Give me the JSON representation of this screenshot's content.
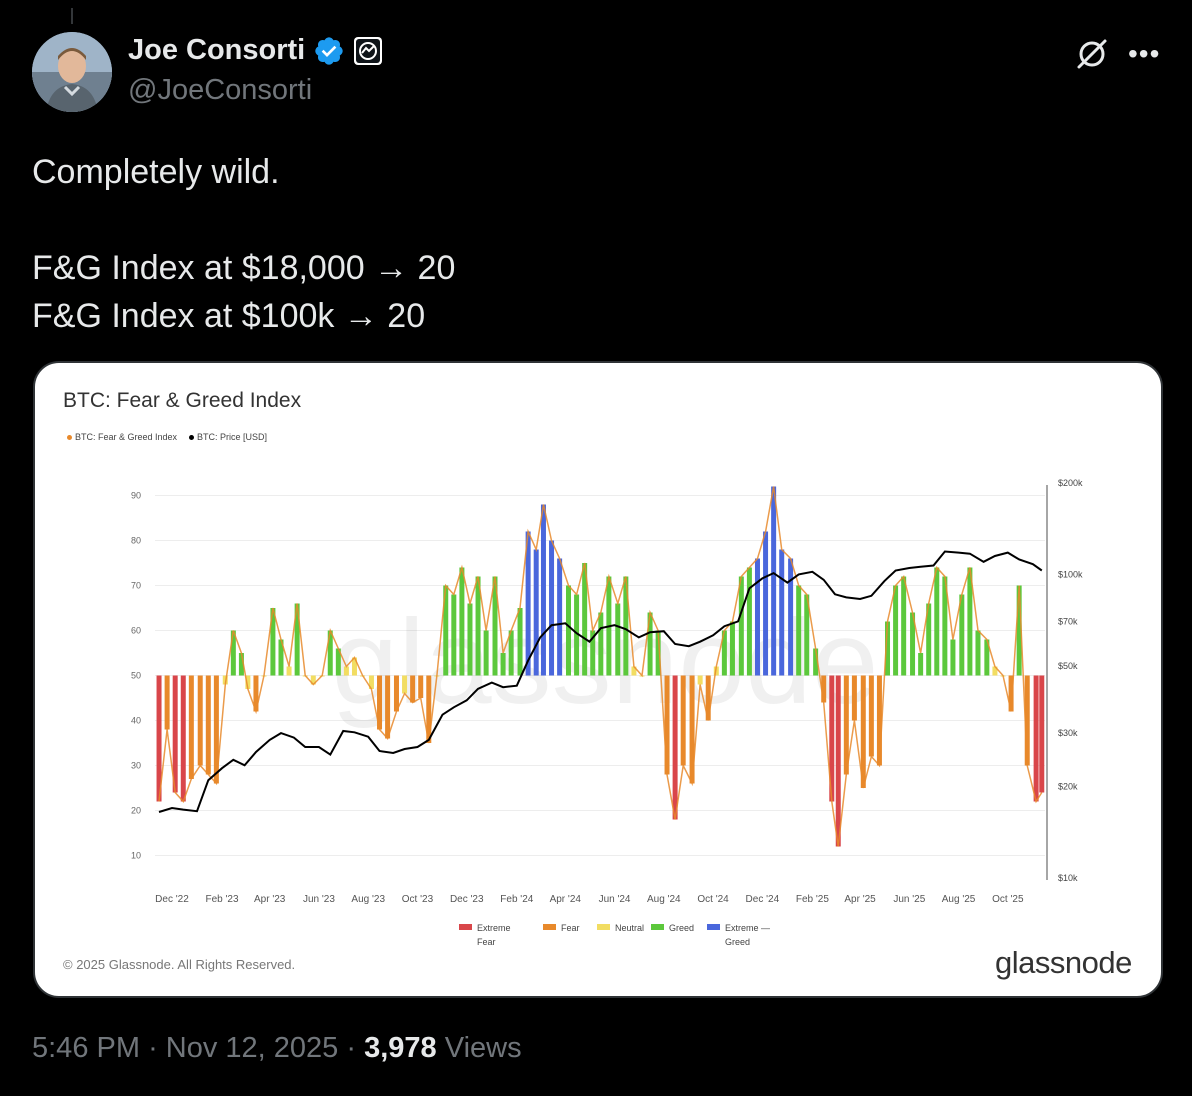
{
  "author": {
    "name": "Joe Consorti",
    "handle": "@JoeConsorti"
  },
  "tweet": {
    "lines": [
      "Completely wild.",
      "",
      "F&G Index at $18,000 → 20",
      "F&G Index at $100k → 20"
    ]
  },
  "card": {
    "copyright": "© 2025 Glassnode. All Rights Reserved.",
    "brand": "glassnode",
    "watermark": "glassnode"
  },
  "meta": {
    "time": "5:46 PM",
    "date": "Nov 12, 2025",
    "views_count": "3,978",
    "views_label": "Views",
    "separator": "·"
  },
  "colors": {
    "extreme_fear": "#d9464a",
    "fear": "#e8892b",
    "neutral": "#f2dd62",
    "greed": "#5cc83c",
    "extreme_greed": "#4a67dc",
    "price": "#000000",
    "verified": "#1d9bf0"
  },
  "chart_data": {
    "type": "line",
    "title": "BTC: Fear & Greed Index",
    "legend_series": [
      "BTC: Fear & Greed Index",
      "BTC: Price [USD]"
    ],
    "x_ticks": [
      "Dec '22",
      "Feb '23",
      "Apr '23",
      "Jun '23",
      "Aug '23",
      "Oct '23",
      "Dec '23",
      "Feb '24",
      "Apr '24",
      "Jun '24",
      "Aug '24",
      "Oct '24",
      "Dec '24",
      "Feb '25",
      "Apr '25",
      "Jun '25",
      "Aug '25",
      "Oct '25"
    ],
    "y_left_ticks": [
      10,
      20,
      30,
      40,
      50,
      60,
      70,
      80,
      90
    ],
    "y_left_range": [
      5,
      95
    ],
    "y_right_ticks": [
      "$10k",
      "$20k",
      "$30k",
      "$50k",
      "$70k",
      "$100k",
      "$200k"
    ],
    "y_right_values": [
      10000,
      20000,
      30000,
      50000,
      70000,
      100000,
      200000
    ],
    "y_right_scale": "log",
    "zone_legend": [
      "Extreme Fear",
      "Fear",
      "Neutral",
      "Greed",
      "Extreme — Greed"
    ],
    "series": [
      {
        "name": "BTC: Fear & Greed Index",
        "dates": [
          "2022-11-15",
          "2022-11-25",
          "2022-12-05",
          "2022-12-15",
          "2022-12-25",
          "2023-01-05",
          "2023-01-15",
          "2023-01-25",
          "2023-02-05",
          "2023-02-15",
          "2023-02-25",
          "2023-03-05",
          "2023-03-15",
          "2023-03-25",
          "2023-04-05",
          "2023-04-15",
          "2023-04-25",
          "2023-05-05",
          "2023-05-15",
          "2023-05-25",
          "2023-06-05",
          "2023-06-15",
          "2023-06-25",
          "2023-07-05",
          "2023-07-15",
          "2023-07-25",
          "2023-08-05",
          "2023-08-15",
          "2023-08-25",
          "2023-09-05",
          "2023-09-15",
          "2023-09-25",
          "2023-10-05",
          "2023-10-15",
          "2023-10-25",
          "2023-11-05",
          "2023-11-15",
          "2023-11-25",
          "2023-12-05",
          "2023-12-15",
          "2023-12-25",
          "2024-01-05",
          "2024-01-15",
          "2024-01-25",
          "2024-02-05",
          "2024-02-15",
          "2024-02-25",
          "2024-03-05",
          "2024-03-15",
          "2024-03-25",
          "2024-04-05",
          "2024-04-15",
          "2024-04-25",
          "2024-05-05",
          "2024-05-15",
          "2024-05-25",
          "2024-06-05",
          "2024-06-15",
          "2024-06-25",
          "2024-07-05",
          "2024-07-15",
          "2024-07-25",
          "2024-08-05",
          "2024-08-15",
          "2024-08-25",
          "2024-09-05",
          "2024-09-15",
          "2024-09-25",
          "2024-10-05",
          "2024-10-15",
          "2024-10-25",
          "2024-11-05",
          "2024-11-15",
          "2024-11-25",
          "2024-12-05",
          "2024-12-15",
          "2024-12-25",
          "2025-01-05",
          "2025-01-15",
          "2025-01-25",
          "2025-02-05",
          "2025-02-15",
          "2025-02-25",
          "2025-03-05",
          "2025-03-15",
          "2025-03-25",
          "2025-04-05",
          "2025-04-15",
          "2025-04-25",
          "2025-05-05",
          "2025-05-15",
          "2025-05-25",
          "2025-06-05",
          "2025-06-15",
          "2025-06-25",
          "2025-07-05",
          "2025-07-15",
          "2025-07-25",
          "2025-08-05",
          "2025-08-15",
          "2025-08-25",
          "2025-09-05",
          "2025-09-15",
          "2025-09-25",
          "2025-10-05",
          "2025-10-15",
          "2025-10-25",
          "2025-11-05",
          "2025-11-12"
        ],
        "values": [
          22,
          38,
          24,
          22,
          27,
          30,
          28,
          26,
          48,
          60,
          55,
          47,
          42,
          50,
          65,
          58,
          52,
          66,
          50,
          48,
          50,
          60,
          56,
          52,
          54,
          50,
          47,
          38,
          36,
          42,
          46,
          44,
          45,
          35,
          50,
          70,
          68,
          74,
          66,
          72,
          60,
          72,
          55,
          60,
          65,
          82,
          78,
          88,
          80,
          76,
          70,
          68,
          75,
          60,
          64,
          72,
          66,
          72,
          52,
          50,
          64,
          60,
          28,
          18,
          30,
          26,
          48,
          40,
          52,
          60,
          62,
          72,
          74,
          76,
          82,
          92,
          78,
          76,
          70,
          68,
          56,
          44,
          22,
          12,
          28,
          40,
          25,
          32,
          30,
          62,
          70,
          72,
          64,
          55,
          66,
          74,
          72,
          58,
          68,
          74,
          60,
          58,
          52,
          50,
          42,
          70,
          30,
          22,
          24
        ]
      },
      {
        "name": "BTC: Price [USD]",
        "dates": [
          "2022-11-15",
          "2022-12-01",
          "2022-12-15",
          "2023-01-01",
          "2023-01-15",
          "2023-02-01",
          "2023-02-15",
          "2023-03-01",
          "2023-03-15",
          "2023-04-01",
          "2023-04-15",
          "2023-05-01",
          "2023-05-15",
          "2023-06-01",
          "2023-06-15",
          "2023-07-01",
          "2023-07-15",
          "2023-08-01",
          "2023-08-15",
          "2023-09-01",
          "2023-09-15",
          "2023-10-01",
          "2023-10-15",
          "2023-11-01",
          "2023-11-15",
          "2023-12-01",
          "2023-12-15",
          "2024-01-01",
          "2024-01-15",
          "2024-02-01",
          "2024-02-15",
          "2024-03-01",
          "2024-03-15",
          "2024-04-01",
          "2024-04-15",
          "2024-05-01",
          "2024-05-15",
          "2024-06-01",
          "2024-06-15",
          "2024-07-01",
          "2024-07-15",
          "2024-08-01",
          "2024-08-15",
          "2024-09-01",
          "2024-09-15",
          "2024-10-01",
          "2024-10-15",
          "2024-11-01",
          "2024-11-15",
          "2024-12-01",
          "2024-12-15",
          "2025-01-01",
          "2025-01-15",
          "2025-02-01",
          "2025-02-15",
          "2025-03-01",
          "2025-03-15",
          "2025-04-01",
          "2025-04-15",
          "2025-05-01",
          "2025-05-15",
          "2025-06-01",
          "2025-06-15",
          "2025-07-01",
          "2025-07-15",
          "2025-08-01",
          "2025-08-15",
          "2025-09-01",
          "2025-09-15",
          "2025-10-01",
          "2025-10-15",
          "2025-11-01",
          "2025-11-12"
        ],
        "values": [
          16500,
          17000,
          16800,
          16600,
          21000,
          23000,
          24500,
          23500,
          26000,
          28500,
          30000,
          29000,
          27000,
          27000,
          25500,
          30500,
          30200,
          29200,
          26200,
          25800,
          26600,
          27000,
          28500,
          34500,
          36500,
          38500,
          42000,
          44000,
          42500,
          43000,
          52000,
          62000,
          68000,
          69000,
          64000,
          60000,
          66500,
          68000,
          66000,
          62000,
          64500,
          65000,
          59000,
          58000,
          60000,
          63000,
          67500,
          70000,
          90000,
          97000,
          101000,
          94000,
          100000,
          102000,
          96000,
          86000,
          84000,
          83000,
          85000,
          95000,
          103000,
          105000,
          106000,
          107000,
          119000,
          118000,
          117000,
          110000,
          115000,
          118000,
          112000,
          108000,
          103000
        ]
      }
    ]
  }
}
